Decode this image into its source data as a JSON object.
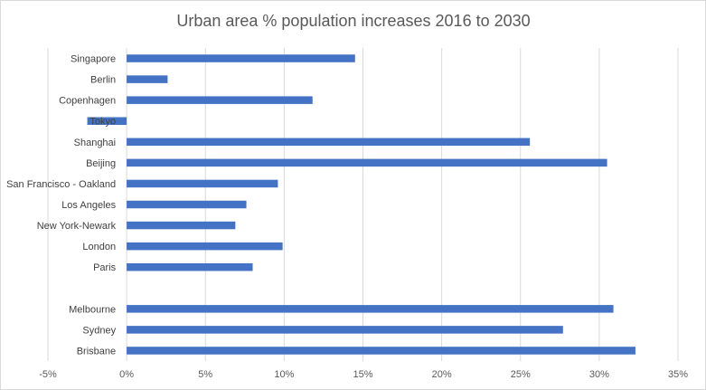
{
  "chart_data": {
    "type": "bar",
    "orientation": "horizontal",
    "title": "Urban area % population increases 2016 to 2030",
    "categories": [
      "Singapore",
      "Berlin",
      "Copenhagen",
      "Tokyo",
      "Shanghai",
      "Beijing",
      "San Francisco - Oakland",
      "Los Angeles",
      "New York-Newark",
      "London",
      "Paris",
      "",
      "Melbourne",
      "Sydney",
      "Brisbane"
    ],
    "values": [
      14.5,
      2.6,
      11.8,
      -2.5,
      25.6,
      30.5,
      9.6,
      7.6,
      6.9,
      9.9,
      8.0,
      null,
      30.9,
      27.7,
      32.3
    ],
    "xlim": [
      -5,
      35
    ],
    "xticks": [
      -5,
      0,
      5,
      10,
      15,
      20,
      25,
      30,
      35
    ],
    "tick_labels": [
      "-5%",
      "0%",
      "5%",
      "10%",
      "15%",
      "20%",
      "25%",
      "30%",
      "35%"
    ],
    "grid": true,
    "xlabel": "",
    "ylabel": "",
    "legend": "none",
    "bar_color": "#4472c4",
    "grid_color": "#d9d9d9"
  }
}
